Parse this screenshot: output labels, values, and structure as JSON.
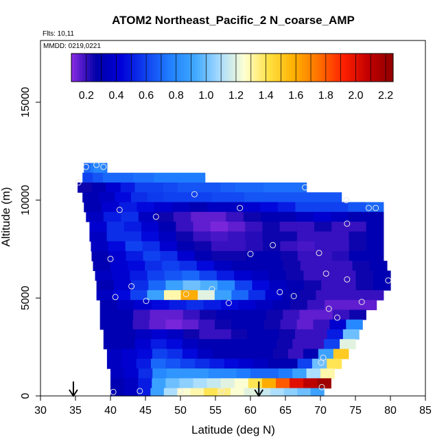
{
  "chart_data": {
    "type": "heatmap",
    "title": "ATOM2 Northeast_Pacific_2 N_coarse_AMP",
    "annotations": {
      "flights": "Flts: 10,11",
      "dates": "MMDD: 0219,0221"
    },
    "xlabel": "Latitude (deg N)",
    "ylabel": "Altitude (m)",
    "xlim": [
      30,
      85
    ],
    "ylim": [
      0,
      17500
    ],
    "x_ticks": [
      30,
      35,
      40,
      45,
      50,
      55,
      60,
      65,
      70,
      75,
      80,
      85
    ],
    "x_tick_labels": [
      "30",
      "35",
      "40",
      "45",
      "50",
      "55",
      "60",
      "65",
      "70",
      "75",
      "80",
      "85"
    ],
    "y_ticks": [
      0,
      5000,
      10000,
      15000
    ],
    "y_tick_labels": [
      "0",
      "5000",
      "10000",
      "15000"
    ],
    "colorbar": {
      "range": [
        0.1,
        2.25
      ],
      "tick_values": [
        0.2,
        0.4,
        0.6,
        0.8,
        1.0,
        1.2,
        1.4,
        1.6,
        1.8,
        2.0,
        2.2
      ],
      "tick_labels": [
        "0.2",
        "0.4",
        "0.6",
        "0.8",
        "1.0",
        "1.2",
        "1.4",
        "1.6",
        "1.8",
        "2.0",
        "2.2"
      ],
      "colors": [
        "#8a2be2",
        "#0000a8",
        "#0000d8",
        "#1040f0",
        "#2080ff",
        "#40a8ff",
        "#a8dcff",
        "#ffffd0",
        "#ffe040",
        "#ffb000",
        "#ff7000",
        "#ff2000",
        "#c00000",
        "#900000"
      ]
    },
    "grid": false,
    "arrows_at_latitude": [
      34.7,
      61.2
    ],
    "rows": [
      {
        "alt_lo": 11400,
        "alt_hi": 11900,
        "lat_start": 36.2,
        "lat_end": 39.5,
        "values": [
          0.7,
          0.7,
          0.75,
          0.8,
          0.8,
          0.8,
          0.75
        ]
      },
      {
        "alt_lo": 10900,
        "alt_hi": 11400,
        "lat_start": 36.0,
        "lat_end": 53.5,
        "values": [
          0.6,
          0.65,
          0.7,
          0.7,
          0.7,
          0.72,
          0.72,
          0.75,
          0.75,
          0.75,
          0.75,
          0.75
        ]
      },
      {
        "alt_lo": 10400,
        "alt_hi": 10900,
        "lat_start": 35.3,
        "lat_end": 68.0,
        "values": [
          0.25,
          0.3,
          0.4,
          0.5,
          0.6,
          0.6,
          0.62,
          0.65,
          0.65,
          0.65,
          0.68,
          0.7,
          0.7,
          0.72,
          0.72,
          0.72
        ]
      },
      {
        "alt_lo": 9900,
        "alt_hi": 10400,
        "lat_start": 36.0,
        "lat_end": 73.0,
        "values": [
          0.3,
          0.35,
          0.45,
          0.55,
          0.58,
          0.6,
          0.6,
          0.6,
          0.62,
          0.62,
          0.65,
          0.65,
          0.65,
          0.65,
          0.65,
          0.65
        ]
      },
      {
        "alt_lo": 9400,
        "alt_hi": 9900,
        "lat_start": 36.2,
        "lat_end": 79.0,
        "values": [
          0.3,
          0.4,
          0.5,
          0.45,
          0.4,
          0.35,
          0.3,
          0.35,
          0.35,
          0.4,
          0.45,
          0.5,
          0.6,
          0.6,
          0.6,
          0.65,
          0.7
        ]
      },
      {
        "alt_lo": 8900,
        "alt_hi": 9400,
        "lat_start": 36.5,
        "lat_end": 79.0,
        "values": [
          0.35,
          0.5,
          0.55,
          0.35,
          0.25,
          0.2,
          0.15,
          0.15,
          0.2,
          0.25,
          0.3,
          0.3,
          0.35,
          0.4,
          0.35,
          0.3,
          0.3
        ]
      },
      {
        "alt_lo": 8400,
        "alt_hi": 8900,
        "lat_start": 37.0,
        "lat_end": 79.0,
        "values": [
          0.4,
          0.55,
          0.5,
          0.4,
          0.3,
          0.2,
          0.15,
          0.12,
          0.15,
          0.2,
          0.25,
          0.2,
          0.2,
          0.25,
          0.2,
          0.2,
          0.3
        ]
      },
      {
        "alt_lo": 7900,
        "alt_hi": 8400,
        "lat_start": 37.0,
        "lat_end": 79.0,
        "values": [
          0.35,
          0.55,
          0.55,
          0.45,
          0.35,
          0.25,
          0.2,
          0.18,
          0.2,
          0.22,
          0.25,
          0.25,
          0.2,
          0.2,
          0.2,
          0.25,
          0.3
        ]
      },
      {
        "alt_lo": 7400,
        "alt_hi": 7900,
        "lat_start": 37.2,
        "lat_end": 79.0,
        "values": [
          0.35,
          0.45,
          0.6,
          0.55,
          0.4,
          0.3,
          0.25,
          0.2,
          0.2,
          0.22,
          0.25,
          0.2,
          0.18,
          0.2,
          0.2,
          0.25,
          0.3
        ]
      },
      {
        "alt_lo": 6900,
        "alt_hi": 7400,
        "lat_start": 37.3,
        "lat_end": 79.0,
        "values": [
          0.3,
          0.4,
          0.5,
          0.6,
          0.55,
          0.4,
          0.3,
          0.25,
          0.25,
          0.3,
          0.3,
          0.25,
          0.2,
          0.2,
          0.22,
          0.3,
          0.3
        ]
      },
      {
        "alt_lo": 6400,
        "alt_hi": 6900,
        "lat_start": 37.5,
        "lat_end": 79.5,
        "values": [
          0.3,
          0.4,
          0.45,
          0.55,
          0.6,
          0.55,
          0.45,
          0.35,
          0.3,
          0.3,
          0.3,
          0.25,
          0.2,
          0.2,
          0.2,
          0.25,
          0.3
        ]
      },
      {
        "alt_lo": 5900,
        "alt_hi": 6400,
        "lat_start": 37.8,
        "lat_end": 80.0,
        "values": [
          0.35,
          0.4,
          0.5,
          0.6,
          0.65,
          0.7,
          0.6,
          0.5,
          0.4,
          0.35,
          0.3,
          0.25,
          0.2,
          0.2,
          0.2,
          0.25,
          0.3
        ]
      },
      {
        "alt_lo": 5400,
        "alt_hi": 5900,
        "lat_start": 38.0,
        "lat_end": 80.0,
        "values": [
          0.3,
          0.4,
          0.55,
          0.7,
          0.9,
          1.0,
          0.95,
          0.8,
          0.6,
          0.45,
          0.35,
          0.3,
          0.25,
          0.2,
          0.2,
          0.25,
          0.3
        ]
      },
      {
        "alt_lo": 4900,
        "alt_hi": 5400,
        "lat_start": 38.0,
        "lat_end": 79.0,
        "values": [
          0.35,
          0.45,
          0.6,
          0.9,
          1.3,
          1.6,
          1.2,
          0.9,
          0.7,
          0.55,
          0.4,
          0.3,
          0.25,
          0.2,
          0.2,
          0.2,
          0.2
        ]
      },
      {
        "alt_lo": 4400,
        "alt_hi": 4900,
        "lat_start": 38.5,
        "lat_end": 78.0,
        "values": [
          0.3,
          0.35,
          0.4,
          0.45,
          0.5,
          0.55,
          0.5,
          0.45,
          0.4,
          0.35,
          0.3,
          0.25,
          0.2,
          0.15,
          0.15,
          0.15
        ]
      },
      {
        "alt_lo": 3900,
        "alt_hi": 4400,
        "lat_start": 38.5,
        "lat_end": 76.5,
        "values": [
          0.3,
          0.3,
          0.2,
          0.15,
          0.15,
          0.2,
          0.25,
          0.3,
          0.3,
          0.3,
          0.25,
          0.2,
          0.15,
          0.15,
          0.2,
          0.25
        ]
      },
      {
        "alt_lo": 3400,
        "alt_hi": 3900,
        "lat_start": 38.5,
        "lat_end": 76.0,
        "values": [
          0.3,
          0.3,
          0.2,
          0.15,
          0.12,
          0.15,
          0.2,
          0.25,
          0.3,
          0.3,
          0.25,
          0.2,
          0.15,
          0.2,
          0.4,
          0.8
        ]
      },
      {
        "alt_lo": 2900,
        "alt_hi": 3400,
        "lat_start": 39.0,
        "lat_end": 75.5,
        "values": [
          0.3,
          0.3,
          0.35,
          0.4,
          0.35,
          0.25,
          0.2,
          0.2,
          0.25,
          0.3,
          0.3,
          0.25,
          0.2,
          0.2,
          0.5,
          1.0
        ]
      },
      {
        "alt_lo": 2400,
        "alt_hi": 2900,
        "lat_start": 39.0,
        "lat_end": 75.0,
        "values": [
          0.3,
          0.3,
          0.4,
          0.5,
          0.45,
          0.35,
          0.3,
          0.3,
          0.3,
          0.3,
          0.3,
          0.25,
          0.2,
          0.2,
          0.6,
          1.2
        ]
      },
      {
        "alt_lo": 1900,
        "alt_hi": 2400,
        "lat_start": 39.5,
        "lat_end": 74.0,
        "values": [
          0.35,
          0.4,
          0.45,
          0.6,
          0.55,
          0.45,
          0.35,
          0.3,
          0.3,
          0.3,
          0.3,
          0.25,
          0.2,
          0.3,
          0.9,
          1.5
        ]
      },
      {
        "alt_lo": 1400,
        "alt_hi": 1900,
        "lat_start": 39.5,
        "lat_end": 73.0,
        "values": [
          0.35,
          0.4,
          0.5,
          0.7,
          0.65,
          0.6,
          0.55,
          0.5,
          0.45,
          0.4,
          0.35,
          0.3,
          0.3,
          0.6,
          1.0,
          1.4
        ]
      },
      {
        "alt_lo": 900,
        "alt_hi": 1400,
        "lat_start": 40.0,
        "lat_end": 72.0,
        "values": [
          0.35,
          0.4,
          0.55,
          0.8,
          0.85,
          0.85,
          0.85,
          0.8,
          0.8,
          0.75,
          0.7,
          0.7,
          0.75,
          0.9,
          1.1,
          1.3
        ]
      },
      {
        "alt_lo": 400,
        "alt_hi": 900,
        "lat_start": 40.0,
        "lat_end": 71.5,
        "values": [
          0.3,
          0.35,
          0.5,
          0.9,
          1.0,
          1.05,
          1.1,
          1.15,
          1.2,
          1.25,
          1.4,
          1.6,
          1.8,
          2.0,
          2.1,
          2.2
        ]
      },
      {
        "alt_lo": 0,
        "alt_hi": 400,
        "lat_start": 40.0,
        "lat_end": 70.5,
        "values": [
          0.3,
          0.35,
          0.5,
          0.9,
          1.1,
          1.25,
          1.3,
          1.4,
          1.35,
          1.25,
          1.2,
          1.15,
          1.1,
          1.05,
          1.0,
          0.9
        ]
      }
    ],
    "sample_points": [
      {
        "lat": 36.5,
        "alt": 11700
      },
      {
        "lat": 38,
        "alt": 11800
      },
      {
        "lat": 39,
        "alt": 11700
      },
      {
        "lat": 35.4,
        "alt": 10900
      },
      {
        "lat": 52,
        "alt": 10300
      },
      {
        "lat": 67.8,
        "alt": 10650
      },
      {
        "lat": 58.5,
        "alt": 9600
      },
      {
        "lat": 73.7,
        "alt": 10000
      },
      {
        "lat": 76.9,
        "alt": 9600
      },
      {
        "lat": 77.9,
        "alt": 9600
      },
      {
        "lat": 41.3,
        "alt": 9500
      },
      {
        "lat": 46.5,
        "alt": 9150
      },
      {
        "lat": 73.8,
        "alt": 8800
      },
      {
        "lat": 63.2,
        "alt": 7700
      },
      {
        "lat": 60,
        "alt": 7250
      },
      {
        "lat": 69.8,
        "alt": 7300
      },
      {
        "lat": 40,
        "alt": 7000
      },
      {
        "lat": 70.8,
        "alt": 6250
      },
      {
        "lat": 73.8,
        "alt": 5950
      },
      {
        "lat": 79.7,
        "alt": 5900
      },
      {
        "lat": 43,
        "alt": 5600
      },
      {
        "lat": 54.5,
        "alt": 5450
      },
      {
        "lat": 50.8,
        "alt": 5200
      },
      {
        "lat": 64.2,
        "alt": 5300
      },
      {
        "lat": 66.2,
        "alt": 5100
      },
      {
        "lat": 40.7,
        "alt": 5050
      },
      {
        "lat": 45.1,
        "alt": 4850
      },
      {
        "lat": 56.9,
        "alt": 4750
      },
      {
        "lat": 75.9,
        "alt": 4800
      },
      {
        "lat": 71.2,
        "alt": 4450
      },
      {
        "lat": 72.4,
        "alt": 4000
      },
      {
        "lat": 70.4,
        "alt": 1950
      },
      {
        "lat": 70.1,
        "alt": 1700
      },
      {
        "lat": 40.4,
        "alt": 200
      },
      {
        "lat": 44.2,
        "alt": 250
      },
      {
        "lat": 55.9,
        "alt": 250
      },
      {
        "lat": 70.2,
        "alt": 450
      },
      {
        "lat": 50,
        "alt": 250
      }
    ]
  }
}
